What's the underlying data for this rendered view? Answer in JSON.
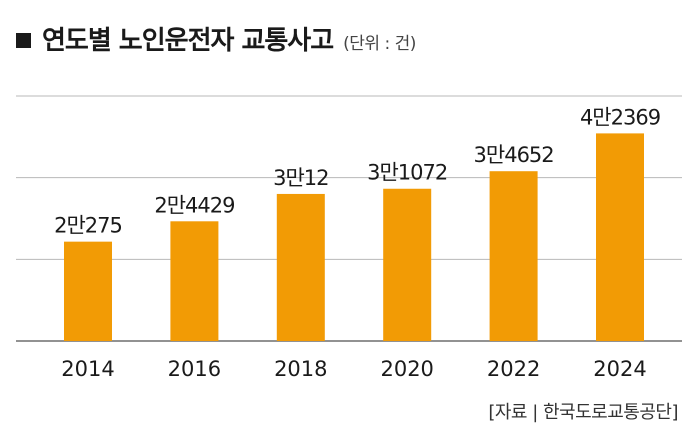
{
  "title": {
    "text": "연도별 노인운전자 교통사고",
    "unit": "(단위 : 건)"
  },
  "source": "[자료 | 한국도로교통공단]",
  "colors": {
    "bar": "#F29B05",
    "grid": "#b8b8b8",
    "axis": "#6e6e6e",
    "text": "#1a1a1a"
  },
  "chart_data": {
    "type": "bar",
    "categories": [
      "2014",
      "2016",
      "2018",
      "2020",
      "2022",
      "2024"
    ],
    "values": [
      20275,
      24429,
      30012,
      31072,
      34652,
      42369
    ],
    "data_labels": [
      "2만275",
      "2만4429",
      "3만12",
      "3만1072",
      "3만4652",
      "4만2369"
    ],
    "title": "연도별 노인운전자 교통사고",
    "unit": "(단위 : 건)",
    "ylim": [
      0,
      50000
    ],
    "grid": true,
    "legend": "none"
  }
}
